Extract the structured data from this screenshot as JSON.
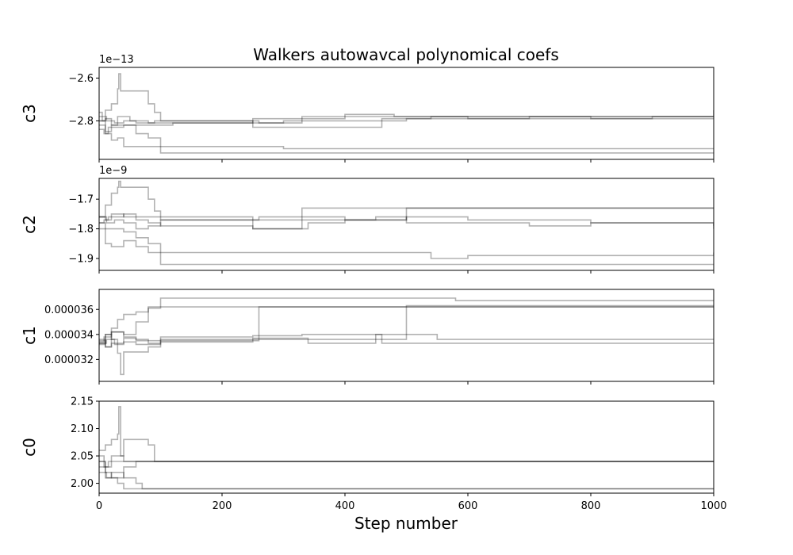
{
  "chart_data": {
    "type": "line",
    "title": "Walkers autowavcal polynomical coefs",
    "xlabel": "Step number",
    "xlim": [
      0,
      1000
    ],
    "xticks": [
      "0",
      "200",
      "400",
      "600",
      "800",
      "1000"
    ],
    "line_color": "#000000",
    "line_opacity": 0.3,
    "panels": [
      {
        "ylabel": "c3",
        "offset": "1e−13",
        "ylim": [
          -2.98,
          -2.55
        ],
        "ytick_values": [
          -2.6,
          -2.8
        ],
        "yticks": [
          "−2.6",
          "−2.8"
        ],
        "walkers": [
          {
            "x": [
              0,
              5,
              10,
              20,
              30,
              50,
              60,
              80,
              90,
              130,
              250,
              330,
              400,
              500,
              600,
              700,
              800,
              900,
              1000
            ],
            "y": [
              -2.76,
              -2.8,
              -2.85,
              -2.82,
              -2.78,
              -2.8,
              -2.8,
              -2.81,
              -2.8,
              -2.8,
              -2.79,
              -2.79,
              -2.78,
              -2.78,
              -2.79,
              -2.78,
              -2.79,
              -2.78,
              -2.78
            ]
          },
          {
            "x": [
              0,
              10,
              20,
              30,
              32,
              35,
              40,
              60,
              80,
              90,
              100,
              150,
              200,
              250,
              300,
              500,
              540,
              700,
              1000
            ],
            "y": [
              -2.8,
              -2.75,
              -2.72,
              -2.65,
              -2.58,
              -2.66,
              -2.66,
              -2.66,
              -2.72,
              -2.76,
              -2.8,
              -2.8,
              -2.8,
              -2.81,
              -2.8,
              -2.79,
              -2.78,
              -2.78,
              -2.75
            ]
          },
          {
            "x": [
              0,
              8,
              15,
              40,
              60,
              100,
              120,
              250,
              260,
              330,
              400,
              450,
              480,
              1000
            ],
            "y": [
              -2.84,
              -2.86,
              -2.83,
              -2.82,
              -2.82,
              -2.82,
              -2.81,
              -2.8,
              -2.81,
              -2.78,
              -2.77,
              -2.77,
              -2.78,
              -2.78
            ]
          },
          {
            "x": [
              0,
              10,
              20,
              30,
              40,
              60,
              80,
              100,
              150,
              200,
              250,
              300,
              540,
              1000
            ],
            "y": [
              -2.82,
              -2.86,
              -2.89,
              -2.88,
              -2.92,
              -2.92,
              -2.92,
              -2.92,
              -2.92,
              -2.92,
              -2.92,
              -2.93,
              -2.93,
              -2.93
            ]
          },
          {
            "x": [
              0,
              10,
              20,
              40,
              60,
              80,
              100,
              1000
            ],
            "y": [
              -2.8,
              -2.79,
              -2.82,
              -2.82,
              -2.86,
              -2.88,
              -2.95,
              -2.95
            ]
          },
          {
            "x": [
              0,
              12,
              25,
              40,
              60,
              100,
              200,
              250,
              300,
              400,
              460,
              600,
              800,
              1000
            ],
            "y": [
              -2.78,
              -2.8,
              -2.81,
              -2.8,
              -2.81,
              -2.81,
              -2.81,
              -2.83,
              -2.83,
              -2.83,
              -2.79,
              -2.79,
              -2.79,
              -2.79
            ]
          }
        ]
      },
      {
        "ylabel": "c2",
        "offset": "1e−9",
        "ylim": [
          -1.94,
          -1.63
        ],
        "ytick_values": [
          -1.7,
          -1.8,
          -1.9
        ],
        "yticks": [
          "−1.7",
          "−1.8",
          "−1.9"
        ],
        "walkers": [
          {
            "x": [
              0,
              10,
              20,
              30,
              32,
              35,
              50,
              60,
              80,
              90,
              100,
              250,
              260,
              330,
              1000
            ],
            "y": [
              -1.76,
              -1.72,
              -1.68,
              -1.66,
              -1.64,
              -1.66,
              -1.66,
              -1.66,
              -1.7,
              -1.74,
              -1.76,
              -1.77,
              -1.76,
              -1.73,
              -1.73
            ]
          },
          {
            "x": [
              0,
              10,
              20,
              40,
              60,
              80,
              100,
              1000
            ],
            "y": [
              -1.78,
              -1.8,
              -1.8,
              -1.81,
              -1.83,
              -1.85,
              -1.92,
              -1.92
            ]
          },
          {
            "x": [
              0,
              10,
              20,
              40,
              60,
              80,
              100,
              250,
              260,
              300,
              540,
              600,
              1000
            ],
            "y": [
              -1.8,
              -1.85,
              -1.86,
              -1.84,
              -1.86,
              -1.88,
              -1.88,
              -1.88,
              -1.88,
              -1.88,
              -1.9,
              -1.89,
              -1.88
            ]
          },
          {
            "x": [
              0,
              8,
              15,
              40,
              60,
              100,
              250,
              260,
              330,
              400,
              450,
              500,
              600,
              800,
              1000
            ],
            "y": [
              -1.78,
              -1.77,
              -1.76,
              -1.75,
              -1.76,
              -1.77,
              -1.8,
              -1.8,
              -1.76,
              -1.77,
              -1.77,
              -1.76,
              -1.77,
              -1.78,
              -1.79
            ]
          },
          {
            "x": [
              0,
              12,
              25,
              40,
              60,
              80,
              100,
              200,
              250,
              330,
              400,
              450,
              500,
              600,
              700,
              800,
              1000
            ],
            "y": [
              -1.76,
              -1.78,
              -1.77,
              -1.78,
              -1.8,
              -1.79,
              -1.77,
              -1.77,
              -1.77,
              -1.77,
              -1.77,
              -1.76,
              -1.78,
              -1.78,
              -1.79,
              -1.78,
              -1.8
            ]
          },
          {
            "x": [
              0,
              10,
              20,
              40,
              60,
              80,
              100,
              250,
              330,
              340,
              400,
              500,
              700,
              900,
              1000
            ],
            "y": [
              -1.76,
              -1.77,
              -1.75,
              -1.76,
              -1.77,
              -1.78,
              -1.79,
              -1.8,
              -1.8,
              -1.78,
              -1.77,
              -1.73,
              -1.73,
              -1.73,
              -1.73
            ]
          }
        ]
      },
      {
        "ylabel": "c1",
        "offset": "",
        "ylim": [
          3.025e-05,
          3.76e-05
        ],
        "ytick_values": [
          3.6e-05,
          3.4e-05,
          3.2e-05
        ],
        "yticks": [
          "0.000036",
          "0.000034",
          "0.000032"
        ],
        "walkers": [
          {
            "x": [
              0,
              10,
              20,
              30,
              40,
              60,
              80,
              100,
              250,
              350,
              570,
              580,
              800,
              1000
            ],
            "y": [
              3.32e-05,
              3.4e-05,
              3.45e-05,
              3.52e-05,
              3.56e-05,
              3.58e-05,
              3.62e-05,
              3.69e-05,
              3.69e-05,
              3.69e-05,
              3.69e-05,
              3.67e-05,
              3.67e-05,
              3.67e-05
            ]
          },
          {
            "x": [
              0,
              10,
              20,
              30,
              35,
              40,
              60,
              80,
              100,
              150,
              200,
              250,
              260,
              1000
            ],
            "y": [
              3.33e-05,
              3.4e-05,
              3.36e-05,
              3.25e-05,
              3.08e-05,
              3.26e-05,
              3.26e-05,
              3.3e-05,
              3.35e-05,
              3.35e-05,
              3.35e-05,
              3.35e-05,
              3.62e-05,
              3.62e-05
            ]
          },
          {
            "x": [
              0,
              10,
              20,
              40,
              60,
              80,
              100,
              150,
              250,
              260,
              330,
              540,
              550,
              800,
              1000
            ],
            "y": [
              3.36e-05,
              3.3e-05,
              3.33e-05,
              3.37e-05,
              3.35e-05,
              3.33e-05,
              3.38e-05,
              3.38e-05,
              3.39e-05,
              3.39e-05,
              3.4e-05,
              3.4e-05,
              3.36e-05,
              3.36e-05,
              3.36e-05
            ]
          },
          {
            "x": [
              0,
              12,
              25,
              40,
              60,
              100,
              250,
              330,
              340,
              400,
              450,
              460,
              1000
            ],
            "y": [
              3.33e-05,
              3.36e-05,
              3.32e-05,
              3.34e-05,
              3.32e-05,
              3.34e-05,
              3.37e-05,
              3.37e-05,
              3.33e-05,
              3.33e-05,
              3.4e-05,
              3.33e-05,
              3.33e-05
            ]
          },
          {
            "x": [
              0,
              8,
              20,
              40,
              60,
              80,
              100,
              250,
              300,
              330,
              500,
              550,
              1000
            ],
            "y": [
              3.34e-05,
              3.38e-05,
              3.42e-05,
              3.38e-05,
              3.36e-05,
              3.35e-05,
              3.36e-05,
              3.36e-05,
              3.36e-05,
              3.36e-05,
              3.63e-05,
              3.63e-05,
              3.63e-05
            ]
          },
          {
            "x": [
              0,
              10,
              20,
              40,
              60,
              80,
              100,
              1000
            ],
            "y": [
              3.35e-05,
              3.3e-05,
              3.42e-05,
              3.4e-05,
              3.5e-05,
              3.61e-05,
              3.62e-05,
              3.62e-05
            ]
          }
        ]
      },
      {
        "ylabel": "c0",
        "offset": "",
        "ylim": [
          1.982,
          2.15
        ],
        "ytick_values": [
          2.15,
          2.1,
          2.05,
          2.0
        ],
        "yticks": [
          "2.15",
          "2.10",
          "2.05",
          "2.00"
        ],
        "walkers": [
          {
            "x": [
              0,
              10,
              20,
              30,
              32,
              35,
              40,
              45,
              60,
              80,
              90,
              1000
            ],
            "y": [
              2.06,
              2.07,
              2.08,
              2.09,
              2.14,
              2.05,
              2.08,
              2.08,
              2.08,
              2.07,
              2.04,
              2.04
            ]
          },
          {
            "x": [
              0,
              10,
              20,
              40,
              60,
              80,
              100,
              1000
            ],
            "y": [
              2.04,
              2.03,
              2.05,
              2.04,
              2.04,
              2.04,
              2.04,
              2.04
            ]
          },
          {
            "x": [
              0,
              10,
              20,
              40,
              60,
              70,
              80,
              100,
              250,
              260,
              1000
            ],
            "y": [
              2.03,
              2.01,
              2.02,
              2.01,
              2.0,
              1.99,
              1.99,
              1.99,
              1.99,
              1.99,
              1.99
            ]
          },
          {
            "x": [
              0,
              12,
              25,
              40,
              60,
              80,
              100,
              1000
            ],
            "y": [
              2.02,
              2.01,
              2.01,
              2.03,
              2.04,
              2.04,
              2.04,
              2.04
            ]
          },
          {
            "x": [
              0,
              8,
              15,
              30,
              60,
              80,
              100,
              1000
            ],
            "y": [
              2.05,
              2.03,
              2.04,
              2.04,
              2.04,
              2.04,
              2.04,
              2.04
            ]
          },
          {
            "x": [
              0,
              10,
              20,
              30,
              40,
              60,
              80,
              1000
            ],
            "y": [
              2.04,
              2.02,
              2.01,
              2.0,
              1.99,
              1.99,
              1.99,
              1.99
            ]
          }
        ]
      }
    ]
  }
}
